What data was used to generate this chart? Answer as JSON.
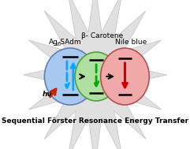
{
  "background_color": "#ffffff",
  "star_color": "#e0e0e0",
  "star_edge_color": "#c0c0c0",
  "ellipse1_color": "#a8c8f0",
  "ellipse2_color": "#b0e0a0",
  "ellipse3_color": "#f0a8a8",
  "ellipse1_edge": "#6080b0",
  "ellipse2_edge": "#50a040",
  "ellipse3_edge": "#b05050",
  "label1_main": "Ag",
  "label1_sub": "20",
  "label1_rest": " -SAdm",
  "label2": "β- Carotene",
  "label3": "Nile blue",
  "bottom_text": "Sequential Förster Resonance Energy Transfer",
  "hv_text": "hν",
  "cyan_arrow": "#00aaff",
  "green_arrow": "#00aa00",
  "red_arrow": "#cc0000",
  "black_arrow": "#111111",
  "hv_arrow_color": "#cc2200",
  "figsize": [
    2.41,
    1.89
  ],
  "dpi": 100
}
